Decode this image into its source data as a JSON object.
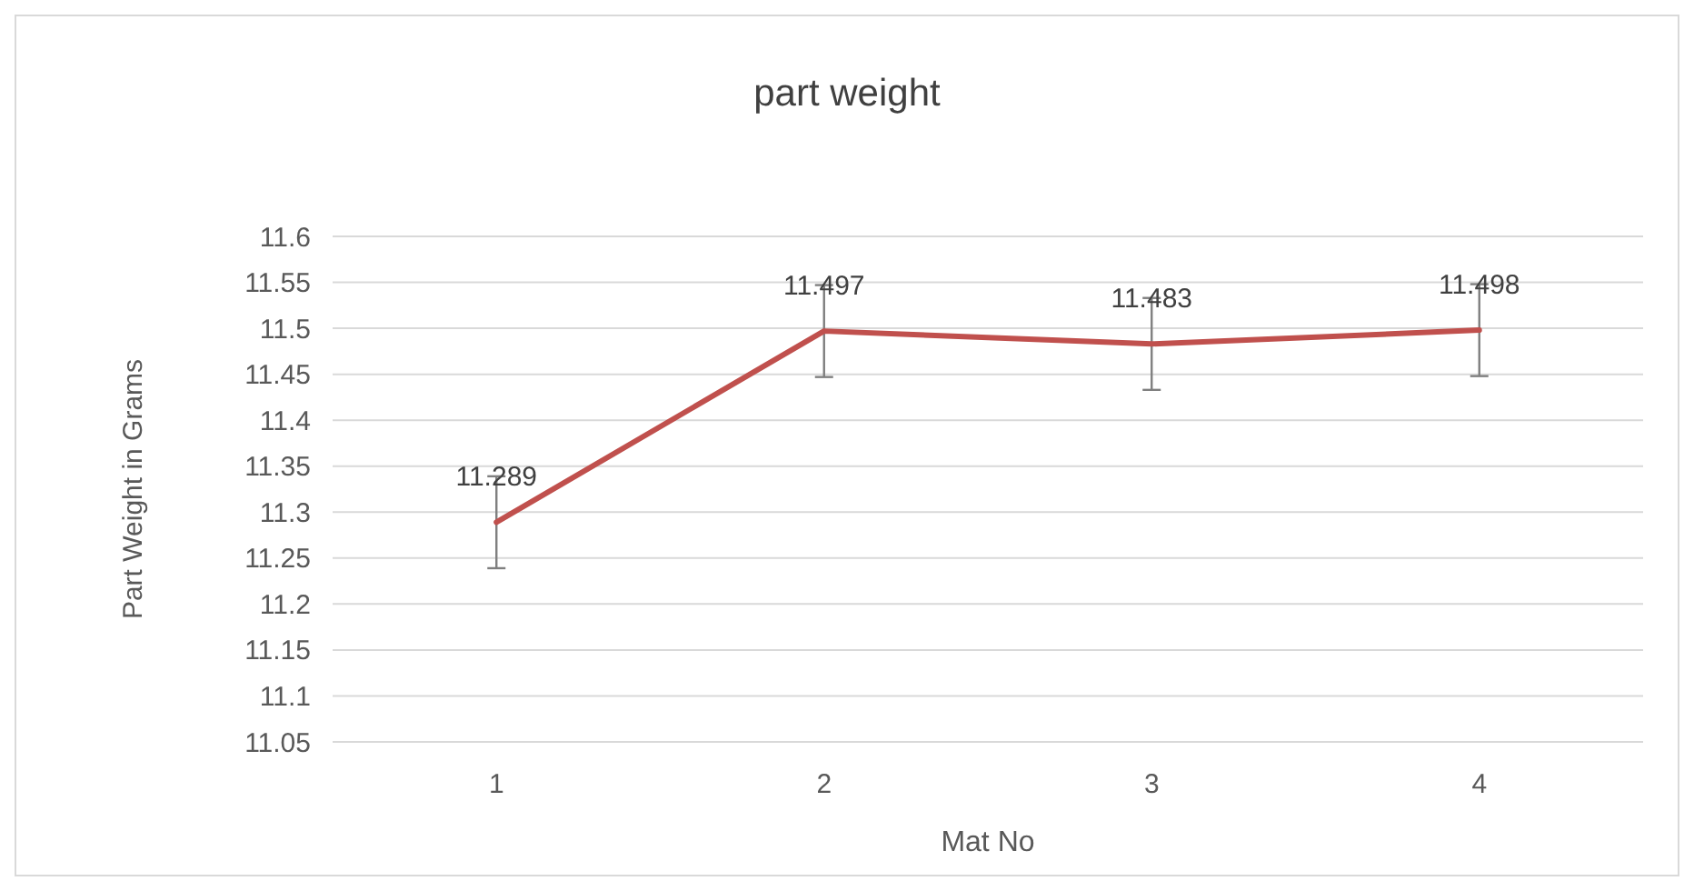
{
  "chart_data": {
    "type": "line",
    "title": "part weight",
    "xlabel": "Mat No",
    "ylabel": "Part Weight in Grams",
    "categories": [
      "1",
      "2",
      "3",
      "4"
    ],
    "series": [
      {
        "color": "#c0504d",
        "values": [
          11.289,
          11.497,
          11.483,
          11.498
        ],
        "errors": [
          0.05,
          0.05,
          0.05,
          0.05
        ]
      }
    ],
    "ylim": [
      11.05,
      11.6
    ],
    "yticks": [
      11.05,
      11.1,
      11.15,
      11.2,
      11.25,
      11.3,
      11.35,
      11.4,
      11.45,
      11.5,
      11.55,
      11.6
    ],
    "grid": "y",
    "data_labels": true,
    "marker": "none",
    "line_style": "solid"
  }
}
